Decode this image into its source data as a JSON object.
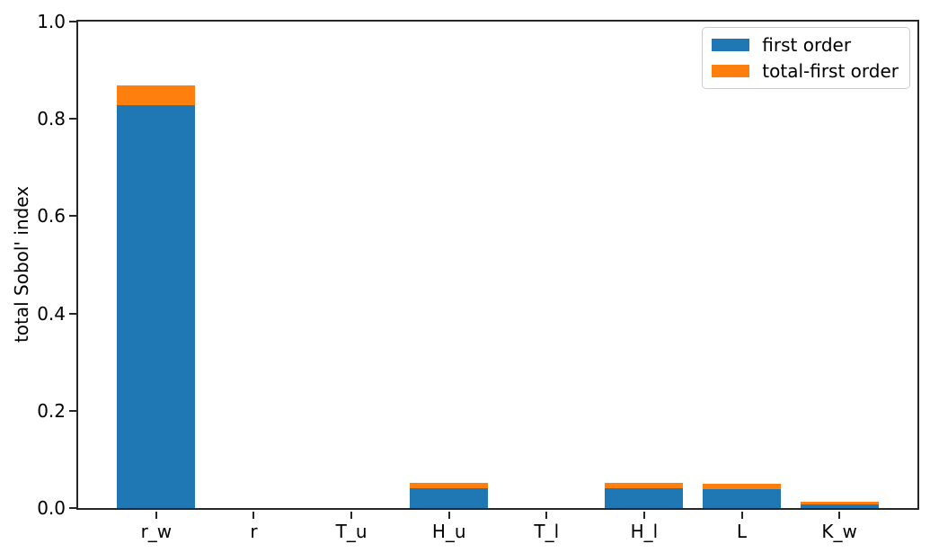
{
  "chart_data": {
    "type": "stacked_bar",
    "title": "",
    "xlabel": "",
    "ylabel": "total Sobol' index",
    "categories": [
      "r_w",
      "r",
      "T_u",
      "H_u",
      "T_l",
      "H_l",
      "L",
      "K_w"
    ],
    "series": [
      {
        "name": "first order",
        "color": "#1f77b4",
        "values": [
          0.829,
          0,
          0,
          0.04,
          0,
          0.041,
          0.038,
          0.008
        ]
      },
      {
        "name": "total-first order",
        "color": "#ff7f0e",
        "values": [
          0.039,
          0,
          0,
          0.012,
          0,
          0.011,
          0.012,
          0.005
        ]
      }
    ],
    "stacked_totals": [
      0.868,
      0,
      0,
      0.052,
      0,
      0.052,
      0.05,
      0.013
    ],
    "ylim": [
      0,
      1
    ],
    "xlim": [
      -0.8,
      7.8
    ],
    "bar_width": 0.8,
    "yticks": [
      {
        "value": 0.0,
        "label": "0.0"
      },
      {
        "value": 0.2,
        "label": "0.2"
      },
      {
        "value": 0.4,
        "label": "0.4"
      },
      {
        "value": 0.6,
        "label": "0.6"
      },
      {
        "value": 0.8,
        "label": "0.8"
      },
      {
        "value": 1.0,
        "label": "1.0"
      }
    ],
    "grid": false,
    "legend": {
      "position": "upper right"
    },
    "colors": {
      "axis": "#262626",
      "legend_border": "#cccccc",
      "background": "#ffffff"
    }
  }
}
